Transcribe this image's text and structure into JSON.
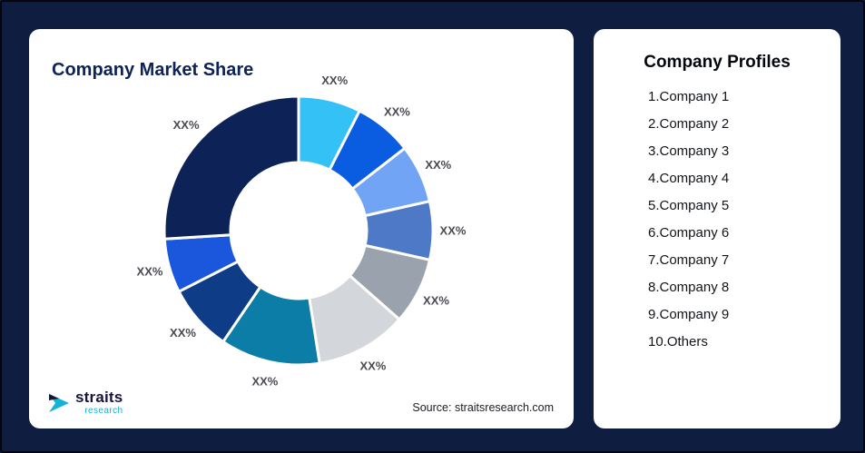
{
  "background": "#0f1d40",
  "left_card": {
    "title": "Company Market Share",
    "source": "Source: straitsresearch.com",
    "logo_primary": "straits",
    "logo_secondary": "research"
  },
  "right_card": {
    "title": "Company Profiles",
    "items": [
      "1.Company 1",
      "2.Company 2",
      "3.Company 3",
      "4.Company 4",
      "5.Company 5",
      "6.Company 6",
      "7.Company 7",
      "8.Company 8",
      "9.Company 9",
      "10.Others"
    ]
  },
  "chart_data": {
    "type": "pie",
    "title": "Company Market Share",
    "donut": true,
    "inner_radius_ratio": 0.51,
    "start_angle_deg": 0,
    "direction": "clockwise",
    "values_estimated": true,
    "label_color": "#4a4a52",
    "segments": [
      {
        "label": "XX%",
        "value": 7.5,
        "color": "#33c1f6"
      },
      {
        "label": "XX%",
        "value": 7,
        "color": "#0a5ce0"
      },
      {
        "label": "XX%",
        "value": 7,
        "color": "#72a4f5"
      },
      {
        "label": "XX%",
        "value": 7,
        "color": "#4e79c7"
      },
      {
        "label": "XX%",
        "value": 8,
        "color": "#99a2ad"
      },
      {
        "label": "XX%",
        "value": 11,
        "color": "#d3d6da"
      },
      {
        "label": "XX%",
        "value": 12,
        "color": "#0c7da6"
      },
      {
        "label": "XX%",
        "value": 8,
        "color": "#0f3c87"
      },
      {
        "label": "XX%",
        "value": 6.5,
        "color": "#1b57dd"
      },
      {
        "label": "XX%",
        "value": 26,
        "color": "#0d2357"
      }
    ]
  }
}
